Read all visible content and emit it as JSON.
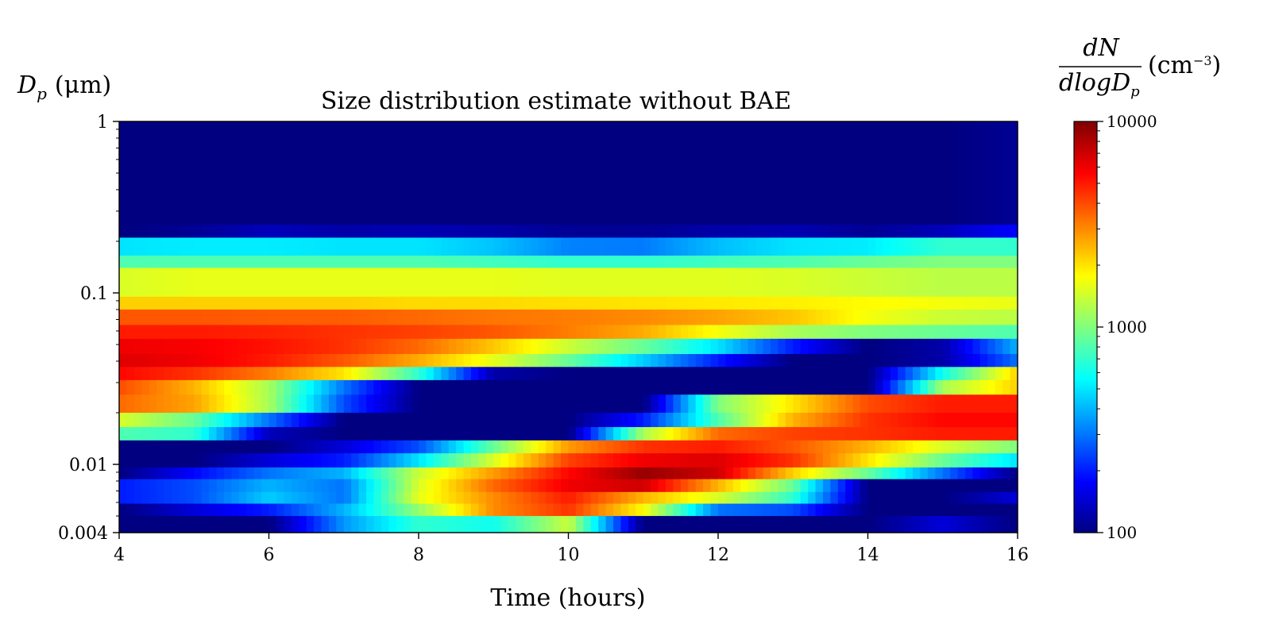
{
  "chart_data": {
    "type": "heatmap",
    "title": "Size distribution estimate without BAE",
    "xlabel": "Time (hours)",
    "ylabel": "D_p (μm)",
    "ylabel_parts": {
      "symbol": "D",
      "sub": "p",
      "unit": "(μm)"
    },
    "xlim": [
      4,
      16
    ],
    "ylim": [
      0.004,
      1
    ],
    "yscale": "log",
    "x_ticks": [
      4,
      6,
      8,
      10,
      12,
      14,
      16
    ],
    "x_tick_labels": [
      "4",
      "6",
      "8",
      "10",
      "12",
      "14",
      "16"
    ],
    "y_ticks": [
      1,
      0.1,
      0.01,
      0.004
    ],
    "y_tick_labels": [
      "1",
      "0.1",
      "0.01",
      "0.004"
    ],
    "colorbar": {
      "label_num": "dN",
      "label_den": "dlogD",
      "label_den_sub": "p",
      "label_unit": "(cm",
      "label_unit_exp": "−3",
      "label_unit_close": ")",
      "scale": "log",
      "range": [
        100,
        10000
      ],
      "tick_labels": [
        "10000",
        "1000",
        "100"
      ],
      "colormap": "jet"
    },
    "time_knots": [
      4,
      5,
      6,
      7,
      8,
      9,
      10,
      11,
      12,
      13,
      14,
      15,
      16
    ],
    "bins": [
      {
        "dp_range": [
          0.25,
          1.0
        ],
        "values": [
          100,
          100,
          100,
          100,
          100,
          100,
          100,
          100,
          100,
          100,
          100,
          100,
          110
        ]
      },
      {
        "dp_range": [
          0.21,
          0.25
        ],
        "values": [
          100,
          110,
          130,
          120,
          125,
          120,
          110,
          110,
          120,
          125,
          110,
          130,
          180
        ]
      },
      {
        "dp_range": [
          0.165,
          0.21
        ],
        "values": [
          500,
          520,
          520,
          500,
          500,
          430,
          320,
          310,
          420,
          500,
          520,
          700,
          700
        ]
      },
      {
        "dp_range": [
          0.14,
          0.165
        ],
        "values": [
          800,
          800,
          800,
          800,
          800,
          750,
          700,
          700,
          750,
          800,
          900,
          1000,
          1000
        ]
      },
      {
        "dp_range": [
          0.095,
          0.14
        ],
        "values": [
          1500,
          1600,
          1600,
          1600,
          1600,
          1600,
          1550,
          1550,
          1550,
          1500,
          1400,
          1300,
          1300
        ]
      },
      {
        "dp_range": [
          0.08,
          0.095
        ],
        "values": [
          2200,
          2200,
          2200,
          2200,
          2100,
          2100,
          2050,
          2000,
          1950,
          1900,
          1800,
          1700,
          1600
        ]
      },
      {
        "dp_range": [
          0.065,
          0.08
        ],
        "values": [
          3800,
          3800,
          3700,
          3700,
          3500,
          3300,
          3200,
          3000,
          2700,
          2300,
          1700,
          1400,
          1300
        ]
      },
      {
        "dp_range": [
          0.054,
          0.065
        ],
        "values": [
          5000,
          5000,
          4800,
          4500,
          4200,
          3800,
          3200,
          2600,
          1700,
          1200,
          1000,
          900,
          800
        ]
      },
      {
        "dp_range": [
          0.044,
          0.054
        ],
        "values": [
          6000,
          5800,
          5200,
          4500,
          3500,
          2300,
          1400,
          900,
          500,
          200,
          100,
          120,
          400
        ]
      },
      {
        "dp_range": [
          0.037,
          0.044
        ],
        "values": [
          6500,
          6000,
          5000,
          3800,
          2600,
          1600,
          900,
          450,
          200,
          100,
          100,
          120,
          300
        ]
      },
      {
        "dp_range": [
          0.031,
          0.037
        ],
        "values": [
          5500,
          4500,
          3200,
          2000,
          700,
          120,
          100,
          100,
          100,
          100,
          100,
          600,
          2200
        ]
      },
      {
        "dp_range": [
          0.0255,
          0.031
        ],
        "values": [
          4000,
          2500,
          1200,
          300,
          100,
          100,
          100,
          100,
          100,
          100,
          100,
          1200,
          2200
        ]
      },
      {
        "dp_range": [
          0.02,
          0.0255
        ],
        "values": [
          3500,
          2700,
          1200,
          250,
          100,
          100,
          100,
          100,
          1000,
          2000,
          4000,
          5000,
          5000
        ]
      },
      {
        "dp_range": [
          0.0165,
          0.02
        ],
        "values": [
          1500,
          900,
          300,
          100,
          100,
          100,
          100,
          200,
          800,
          2500,
          4500,
          5500,
          5500
        ]
      },
      {
        "dp_range": [
          0.0138,
          0.0165
        ],
        "values": [
          800,
          700,
          130,
          100,
          100,
          100,
          100,
          1200,
          3500,
          4200,
          4500,
          5000,
          5000
        ]
      },
      {
        "dp_range": [
          0.0116,
          0.0138
        ],
        "values": [
          100,
          100,
          100,
          150,
          250,
          900,
          2800,
          4500,
          5000,
          3800,
          2500,
          1500,
          1000
        ]
      },
      {
        "dp_range": [
          0.0096,
          0.0116
        ],
        "values": [
          100,
          100,
          150,
          200,
          500,
          1500,
          4200,
          6000,
          6500,
          4500,
          2000,
          900,
          500
        ]
      },
      {
        "dp_range": [
          0.0082,
          0.0096
        ],
        "values": [
          100,
          180,
          300,
          400,
          1400,
          2800,
          5500,
          9000,
          7000,
          2200,
          900,
          300,
          100
        ]
      },
      {
        "dp_range": [
          0.0069,
          0.0082
        ],
        "values": [
          200,
          250,
          400,
          300,
          1500,
          3500,
          6000,
          7000,
          2500,
          900,
          100,
          100,
          100
        ]
      },
      {
        "dp_range": [
          0.0059,
          0.0069
        ],
        "values": [
          200,
          250,
          450,
          300,
          1600,
          3000,
          5000,
          2500,
          1500,
          700,
          100,
          100,
          150
        ]
      },
      {
        "dp_range": [
          0.005,
          0.0059
        ],
        "values": [
          100,
          150,
          200,
          400,
          1100,
          3000,
          4500,
          1800,
          300,
          250,
          100,
          100,
          100
        ]
      },
      {
        "dp_range": [
          0.004,
          0.005
        ],
        "values": [
          100,
          100,
          100,
          350,
          700,
          600,
          1400,
          100,
          100,
          100,
          100,
          150,
          100
        ]
      }
    ]
  }
}
